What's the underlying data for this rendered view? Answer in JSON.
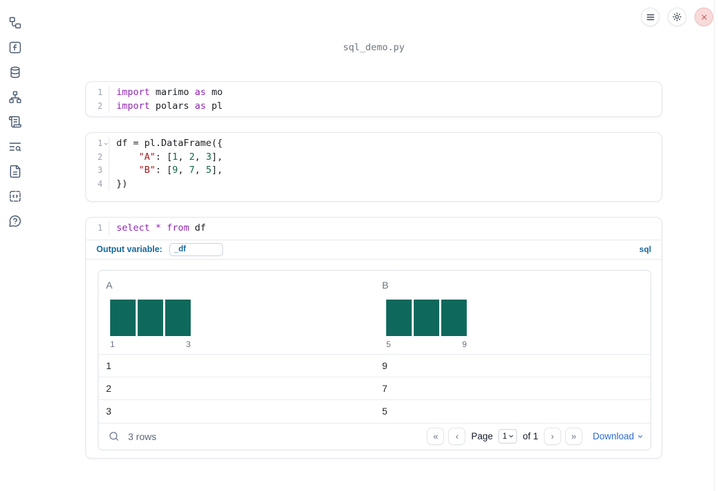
{
  "app": {
    "title": "sql_demo.py"
  },
  "topbar": {
    "buttons": [
      {
        "name": "menu",
        "icon": "hamburger-menu-icon"
      },
      {
        "name": "settings",
        "icon": "gear-icon"
      },
      {
        "name": "shutdown",
        "icon": "close-x-icon"
      }
    ]
  },
  "sidebar": {
    "items": [
      {
        "icon": "file-tree-icon"
      },
      {
        "icon": "variables-function-icon"
      },
      {
        "icon": "datasources-database-icon"
      },
      {
        "icon": "dependency-graph-icon"
      },
      {
        "icon": "logs-scroll-icon"
      },
      {
        "icon": "scratchpad-text-search-icon"
      },
      {
        "icon": "documentation-file-icon"
      },
      {
        "icon": "snippets-code-icon"
      },
      {
        "icon": "help-chat-icon"
      }
    ]
  },
  "cells": [
    {
      "id": "imports",
      "lines": [
        {
          "n": "1",
          "tokens": [
            [
              "kw",
              "import"
            ],
            [
              "pl",
              " marimo "
            ],
            [
              "kw",
              "as"
            ],
            [
              "pl",
              " mo"
            ]
          ]
        },
        {
          "n": "2",
          "tokens": [
            [
              "kw",
              "import"
            ],
            [
              "pl",
              " polars "
            ],
            [
              "kw",
              "as"
            ],
            [
              "pl",
              " pl"
            ]
          ]
        }
      ]
    },
    {
      "id": "dataframe",
      "lines": [
        {
          "n": "1",
          "fold": true,
          "tokens": [
            [
              "pl",
              "df = pl.DataFrame({"
            ]
          ]
        },
        {
          "n": "2",
          "tokens": [
            [
              "pl",
              "    "
            ],
            [
              "str",
              "\"A\""
            ],
            [
              "pl",
              ": ["
            ],
            [
              "num",
              "1"
            ],
            [
              "pl",
              ", "
            ],
            [
              "num",
              "2"
            ],
            [
              "pl",
              ", "
            ],
            [
              "num",
              "3"
            ],
            [
              "pl",
              "],"
            ]
          ]
        },
        {
          "n": "3",
          "tokens": [
            [
              "pl",
              "    "
            ],
            [
              "str",
              "\"B\""
            ],
            [
              "pl",
              ": ["
            ],
            [
              "num",
              "9"
            ],
            [
              "pl",
              ", "
            ],
            [
              "num",
              "7"
            ],
            [
              "pl",
              ", "
            ],
            [
              "num",
              "5"
            ],
            [
              "pl",
              "],"
            ]
          ]
        },
        {
          "n": "4",
          "tokens": [
            [
              "pl",
              "})"
            ]
          ]
        }
      ]
    },
    {
      "id": "sql",
      "lines": [
        {
          "n": "1",
          "tokens": [
            [
              "kw",
              "select"
            ],
            [
              "pl",
              " "
            ],
            [
              "kw",
              "*"
            ],
            [
              "pl",
              " "
            ],
            [
              "kw",
              "from"
            ],
            [
              "pl",
              " df"
            ]
          ]
        }
      ],
      "footer": {
        "label": "Output variable:",
        "value": "_df",
        "language": "sql"
      }
    }
  ],
  "output_table": {
    "columns": [
      {
        "name": "A",
        "hist": {
          "bar_heights": [
            1,
            1,
            1
          ],
          "min_label": "1",
          "max_label": "3"
        }
      },
      {
        "name": "B",
        "hist": {
          "bar_heights": [
            1,
            1,
            1
          ],
          "min_label": "5",
          "max_label": "9"
        }
      }
    ],
    "rows": [
      [
        "1",
        "9"
      ],
      [
        "2",
        "7"
      ],
      [
        "3",
        "5"
      ]
    ],
    "footer": {
      "row_count": "3 rows",
      "first": "«",
      "prev": "‹",
      "next": "›",
      "last": "»",
      "page_label": "Page",
      "page_value": "1",
      "of_label": "of 1",
      "download_label": "Download"
    }
  },
  "colors": {
    "histogram_bar": "#0e695c",
    "keyword": "#9125b1",
    "string": "#a31515",
    "number": "#116644",
    "blue_label": "#17689e",
    "link_blue": "#2a6bd2",
    "close_bg": "#f9dada",
    "close_x": "#c96262"
  }
}
